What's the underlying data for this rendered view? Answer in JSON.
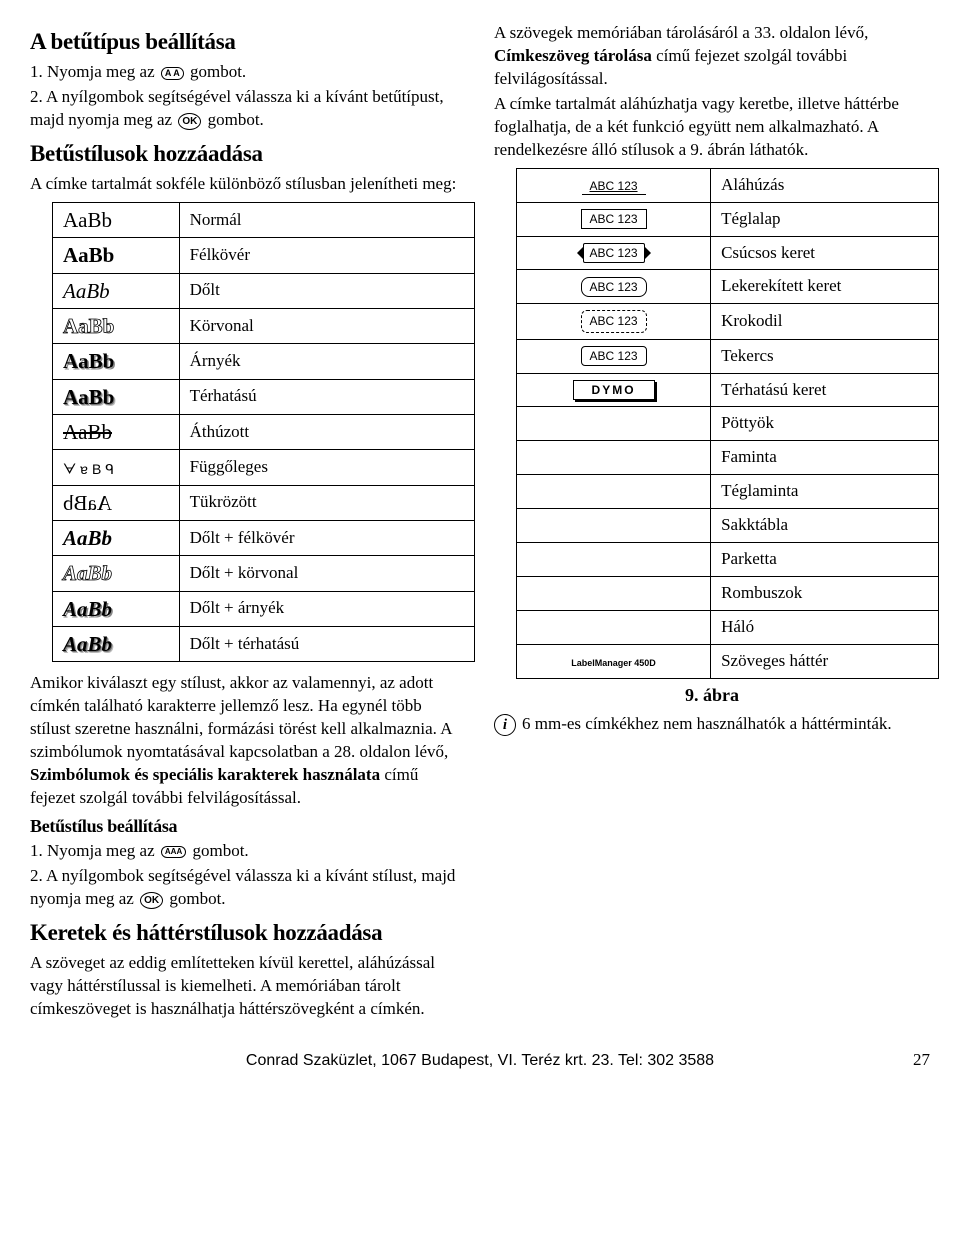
{
  "left": {
    "h1": "A betűtípus beállítása",
    "step1_a": "1. Nyomja meg az ",
    "step1_b": " gombot.",
    "step2": "2. A nyílgombok segítségével válassza ki a kívánt betűtípust, majd nyomja meg az ",
    "step2_b": " gombot.",
    "h2": "Betűstílusok hozzáadása",
    "intro2": "A címke tartalmát sokféle különböző stílusban jelenítheti meg:",
    "styles": [
      {
        "sample": "AaBb",
        "cls": "normal",
        "label": "Normál"
      },
      {
        "sample": "AaBb",
        "cls": "bold",
        "label": "Félkövér"
      },
      {
        "sample": "AaBb",
        "cls": "italic",
        "label": "Dőlt"
      },
      {
        "sample": "AaBb",
        "cls": "outline",
        "label": "Körvonal"
      },
      {
        "sample": "AaBb",
        "cls": "shadow",
        "label": "Árnyék"
      },
      {
        "sample": "AaBb",
        "cls": "threed",
        "label": "Térhatású"
      },
      {
        "sample": "AaBb",
        "cls": "strike",
        "label": "Áthúzott"
      },
      {
        "sample": "ᗄɐBᑫ",
        "cls": "vertical",
        "label": "Függőleges"
      },
      {
        "sample": "AaBb",
        "cls": "mirror",
        "label": "Tükrözött"
      },
      {
        "sample": "AaBb",
        "cls": "bolditalic",
        "label": "Dőlt + félkövér"
      },
      {
        "sample": "AaBb",
        "cls": "italicoutline",
        "label": "Dőlt + körvonal"
      },
      {
        "sample": "AaBb",
        "cls": "italicshadow",
        "label": "Dőlt + árnyék"
      },
      {
        "sample": "AaBb",
        "cls": "italicthreed",
        "label": "Dőlt + térhatású"
      }
    ],
    "para_after": "Amikor kiválaszt egy stílust, akkor az valamennyi, az adott címkén található karakterre jellemző lesz. Ha egynél több stílust szeretne használni, formázási törést kell alkalmaznia. A szimbólumok nyomtatásával kapcsolatban a 28. oldalon lévő, ",
    "para_after_bold": "Szimbólumok és speciális karakterek használata",
    "para_after_tail": " című fejezet szolgál további felvilágosítással.",
    "h3": "Betűstílus beállítása",
    "s1a": "1. Nyomja meg az ",
    "s1b": " gombot.",
    "s2a": "2. A nyílgombok segítségével válassza ki a kívánt stílust, majd nyomja meg az ",
    "s2b": " gombot.",
    "h4": "Keretek és háttérstílusok hozzáadása",
    "para4": "A szöveget az eddig említetteken kívül kerettel, aláhúzással vagy háttérstílussal is kiemelheti. A memóriában tárolt címkeszöveget is használhatja háttérszövegként a címkén."
  },
  "right": {
    "intro_a": "A szövegek memóriában tárolásáról a 33. oldalon lévő, ",
    "intro_bold": "Címkeszöveg tárolása",
    "intro_b": " című fejezet szolgál további felvilágosítással.",
    "intro_c": "A címke tartalmát aláhúzhatja vagy keretbe, illetve háttérbe foglalhatja, de a két funkció együtt nem alkalmazható. A rendelkezésre álló stílusok a 9. ábrán láthatók.",
    "borders": [
      {
        "swatch": "ABC 123",
        "cls": "b-underline",
        "label": "Aláhúzás"
      },
      {
        "swatch": "ABC 123",
        "cls": "b-rect",
        "label": "Téglalap"
      },
      {
        "swatch": "ABC 123",
        "cls": "b-pointed",
        "label": "Csúcsos keret"
      },
      {
        "swatch": "ABC 123",
        "cls": "b-rounded",
        "label": "Lekerekített keret"
      },
      {
        "swatch": "ABC 123",
        "cls": "b-croc",
        "label": "Krokodil"
      },
      {
        "swatch": "ABC 123",
        "cls": "b-scroll",
        "label": "Tekercs"
      },
      {
        "swatch": "DYMO",
        "cls": "b-threed",
        "label": "Térhatású keret"
      },
      {
        "swatch": "",
        "cls": "",
        "label": "Pöttyök"
      },
      {
        "swatch": "",
        "cls": "",
        "label": "Faminta"
      },
      {
        "swatch": "",
        "cls": "",
        "label": "Téglaminta"
      },
      {
        "swatch": "",
        "cls": "",
        "label": "Sakktábla"
      },
      {
        "swatch": "",
        "cls": "",
        "label": "Parketta"
      },
      {
        "swatch": "",
        "cls": "",
        "label": "Rombuszok"
      },
      {
        "swatch": "",
        "cls": "",
        "label": "Háló"
      },
      {
        "swatch": "LabelManager 450D",
        "cls": "b-label450",
        "label": "Szöveges háttér"
      }
    ],
    "figcap": "9. ábra",
    "info": "6 mm-es címkékhez nem használhatók a háttérminták."
  },
  "footer": {
    "center": "Conrad Szaküzlet, 1067 Budapest, VI. Teréz krt. 23. Tel: 302 3588",
    "pageno": "27"
  },
  "btn": {
    "font": "A A",
    "ok": "OK",
    "style": "AAA"
  }
}
